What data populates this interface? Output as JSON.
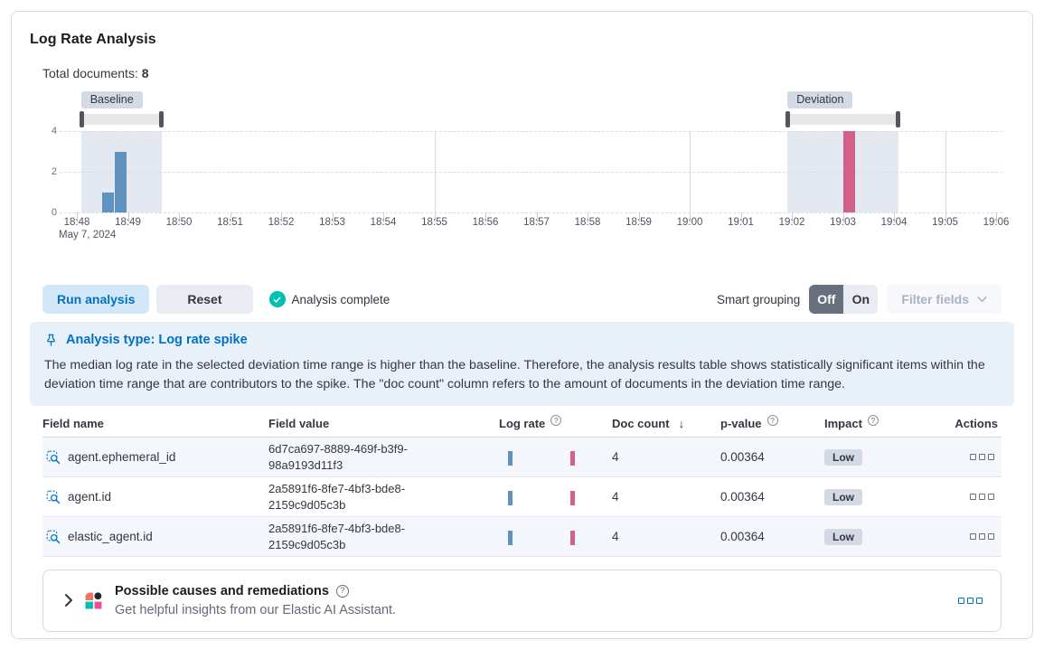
{
  "header": {
    "title": "Log Rate Analysis",
    "total_documents_label": "Total documents:",
    "total_documents_value": "8"
  },
  "chart_data": {
    "type": "bar",
    "ylim": [
      0,
      4
    ],
    "y_ticks": [
      0,
      2,
      4
    ],
    "x_tick_labels": [
      "18:48",
      "18:49",
      "18:50",
      "18:51",
      "18:52",
      "18:53",
      "18:54",
      "18:55",
      "18:56",
      "18:57",
      "18:58",
      "18:59",
      "19:00",
      "19:01",
      "19:02",
      "19:03",
      "19:04",
      "19:05",
      "19:06"
    ],
    "date_label": "May 7, 2024",
    "baseline_label": "Baseline",
    "deviation_label": "Deviation",
    "baseline_window": {
      "start": "18:48:05",
      "end": "18:49:40"
    },
    "deviation_window": {
      "start": "19:01:55",
      "end": "19:04:05"
    },
    "bars": [
      {
        "time": "18:48:30",
        "value": 1,
        "series": "baseline"
      },
      {
        "time": "18:48:45",
        "value": 3,
        "series": "baseline"
      },
      {
        "time": "19:03:00",
        "value": 4,
        "series": "deviation"
      }
    ],
    "vertical_gridlines": [
      "18:55",
      "19:00",
      "19:05"
    ],
    "colors": {
      "baseline_bar": "#6092C0",
      "deviation_bar": "#D36086",
      "window_fill": "#E4E8F1"
    }
  },
  "toolbar": {
    "run_button": "Run analysis",
    "reset_button": "Reset",
    "status_text": "Analysis complete",
    "smart_grouping_label": "Smart grouping",
    "grouping_off": "Off",
    "grouping_on": "On",
    "filter_fields_button": "Filter fields"
  },
  "callout": {
    "title": "Analysis type: Log rate spike",
    "body": "The median log rate in the selected deviation time range is higher than the baseline. Therefore, the analysis results table shows statistically significant items within the deviation time range that are contributors to the spike. The \"doc count\" column refers to the amount of documents in the deviation time range."
  },
  "table": {
    "columns": {
      "field_name": "Field name",
      "field_value": "Field value",
      "log_rate": "Log rate",
      "doc_count": "Doc count",
      "p_value": "p-value",
      "impact": "Impact",
      "actions": "Actions"
    },
    "sort_icon": "↓",
    "rows": [
      {
        "field_name": "agent.ephemeral_id",
        "field_value": "6d7ca697-8889-469f-b3f9-98a9193d11f3",
        "doc_count": "4",
        "p_value": "0.00364",
        "impact": "Low"
      },
      {
        "field_name": "agent.id",
        "field_value": "2a5891f6-8fe7-4bf3-bde8-2159c9d05c3b",
        "doc_count": "4",
        "p_value": "0.00364",
        "impact": "Low"
      },
      {
        "field_name": "elastic_agent.id",
        "field_value": "2a5891f6-8fe7-4bf3-bde8-2159c9d05c3b",
        "doc_count": "4",
        "p_value": "0.00364",
        "impact": "Low"
      }
    ]
  },
  "footer": {
    "title": "Possible causes and remediations",
    "subtitle": "Get helpful insights from our Elastic AI Assistant."
  },
  "colors": {
    "accent_blue": "#0071C2",
    "success_green": "#00BFB3",
    "callout_bg": "#E8F1FA",
    "badge_gray": "#D3DAE6"
  }
}
